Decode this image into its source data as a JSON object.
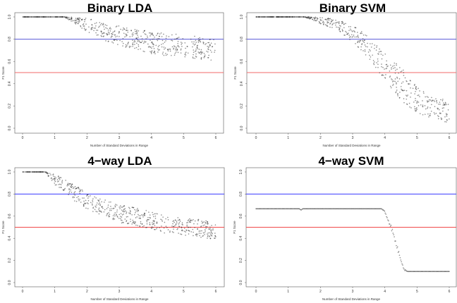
{
  "chart_data": [
    {
      "type": "scatter",
      "title": "Binary LDA",
      "xlabel": "Number of Standard Deviations in Range",
      "ylabel": "F1 Score",
      "xlim": [
        0,
        6
      ],
      "ylim": [
        0,
        1
      ],
      "xticks": [
        "0",
        "1",
        "2",
        "3",
        "4",
        "5",
        "6"
      ],
      "yticks": [
        "0.0",
        "0.2",
        "0.4",
        "0.6",
        "0.8",
        "1.0"
      ],
      "hlines": [
        {
          "y": 0.8,
          "color": "#5858d8"
        },
        {
          "y": 0.5,
          "color": "#f06a6a"
        }
      ],
      "trend": {
        "x": [
          0,
          1.3,
          1.5,
          2,
          2.5,
          3,
          3.5,
          4,
          4.5,
          5,
          5.5,
          6
        ],
        "y": [
          1,
          1,
          0.98,
          0.93,
          0.87,
          0.83,
          0.8,
          0.77,
          0.75,
          0.74,
          0.72,
          0.7
        ],
        "spread": [
          0,
          0,
          0.02,
          0.06,
          0.08,
          0.09,
          0.09,
          0.1,
          0.1,
          0.1,
          0.1,
          0.1
        ]
      }
    },
    {
      "type": "scatter",
      "title": "Binary SVM",
      "xlabel": "Number of Standard Deviations in Range",
      "ylabel": "F1 Score",
      "xlim": [
        0,
        6
      ],
      "ylim": [
        0,
        1
      ],
      "xticks": [
        "0",
        "1",
        "2",
        "3",
        "4",
        "5",
        "6"
      ],
      "yticks": [
        "0.0",
        "0.2",
        "0.4",
        "0.6",
        "0.8",
        "1.0"
      ],
      "hlines": [
        {
          "y": 0.8,
          "color": "#5858d8"
        },
        {
          "y": 0.5,
          "color": "#f06a6a"
        }
      ],
      "trend": {
        "x": [
          0,
          1.5,
          2,
          2.5,
          3,
          3.5,
          4,
          4.5,
          5,
          5.5,
          6
        ],
        "y": [
          1,
          1,
          0.97,
          0.93,
          0.85,
          0.73,
          0.55,
          0.4,
          0.25,
          0.18,
          0.15
        ],
        "spread": [
          0,
          0,
          0.03,
          0.05,
          0.07,
          0.1,
          0.12,
          0.15,
          0.12,
          0.1,
          0.1
        ]
      }
    },
    {
      "type": "scatter",
      "title": "4−way LDA",
      "xlabel": "Number of Standard Deviations in Range",
      "ylabel": "F1 Score",
      "xlim": [
        0,
        6
      ],
      "ylim": [
        0,
        1
      ],
      "xticks": [
        "0",
        "1",
        "2",
        "3",
        "4",
        "5",
        "6"
      ],
      "yticks": [
        "0.0",
        "0.2",
        "0.4",
        "0.6",
        "0.8",
        "1.0"
      ],
      "hlines": [
        {
          "y": 0.8,
          "color": "#3a3aff"
        },
        {
          "y": 0.5,
          "color": "#f04a4a"
        }
      ],
      "trend": {
        "x": [
          0,
          0.7,
          1,
          1.5,
          2,
          2.5,
          3,
          3.5,
          4,
          4.5,
          5,
          5.5,
          6
        ],
        "y": [
          1,
          1,
          0.93,
          0.83,
          0.74,
          0.68,
          0.62,
          0.6,
          0.56,
          0.52,
          0.5,
          0.49,
          0.47
        ],
        "spread": [
          0,
          0,
          0.05,
          0.07,
          0.08,
          0.08,
          0.08,
          0.08,
          0.08,
          0.08,
          0.08,
          0.08,
          0.08
        ]
      }
    },
    {
      "type": "scatter",
      "title": "4−way SVM",
      "xlabel": "Number of Standard Deviations in Range",
      "ylabel": "F1 Score",
      "xlim": [
        0,
        6
      ],
      "ylim": [
        0,
        1
      ],
      "xticks": [
        "0",
        "1",
        "2",
        "3",
        "4",
        "5",
        "6"
      ],
      "yticks": [
        "0.0",
        "0.2",
        "0.4",
        "0.6",
        "0.8",
        "1.0"
      ],
      "hlines": [
        {
          "y": 0.8,
          "color": "#3a3aff"
        },
        {
          "y": 0.5,
          "color": "#f04a4a"
        }
      ],
      "trend": {
        "x": [
          0,
          1.35,
          1.4,
          1.45,
          3.9,
          4.0,
          4.2,
          4.4,
          4.6,
          4.7,
          6
        ],
        "y": [
          0.667,
          0.667,
          0.655,
          0.667,
          0.667,
          0.64,
          0.5,
          0.3,
          0.12,
          0.1,
          0.1
        ],
        "spread": [
          0,
          0,
          0,
          0,
          0,
          0.01,
          0.02,
          0.02,
          0.01,
          0,
          0
        ]
      }
    }
  ]
}
